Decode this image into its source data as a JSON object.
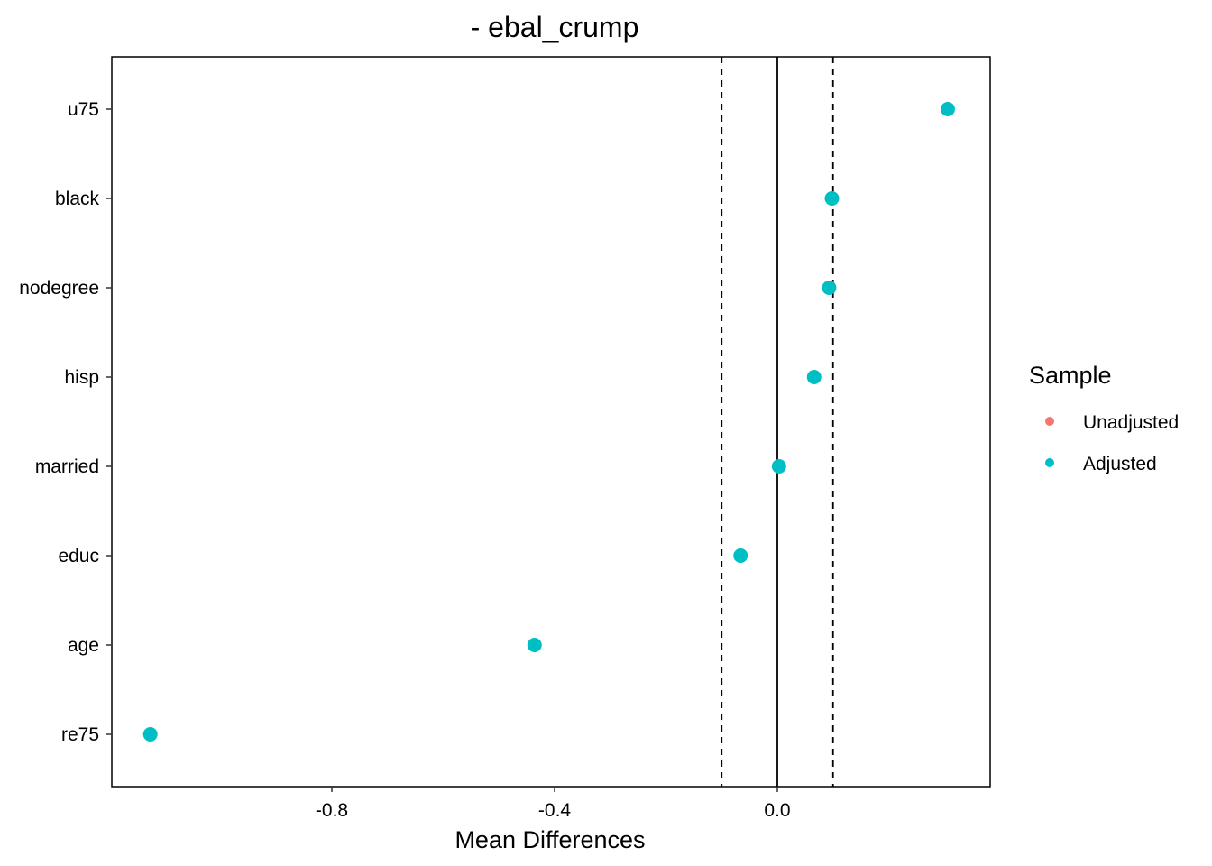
{
  "chart_data": {
    "type": "scatter",
    "title": "- ebal_crump",
    "xlabel": "Mean Differences",
    "ylabel": "",
    "xlim": [
      -1.2,
      0.38
    ],
    "x_ticks": [
      -0.8,
      -0.4,
      0.0
    ],
    "x_tick_labels": [
      "-0.8",
      "-0.4",
      "0.0"
    ],
    "categories": [
      "re75",
      "age",
      "educ",
      "married",
      "hisp",
      "nodegree",
      "black",
      "u75"
    ],
    "reference_lines": {
      "solid": 0.0,
      "dashed": [
        -0.1,
        0.1
      ]
    },
    "series": [
      {
        "name": "Unadjusted",
        "color": "#F8766D",
        "values": []
      },
      {
        "name": "Adjusted",
        "color": "#00BFC4",
        "values": [
          -1.126,
          -0.436,
          -0.066,
          0.003,
          0.066,
          0.093,
          0.098,
          0.306
        ]
      }
    ],
    "legend": {
      "title": "Sample",
      "position": "right",
      "entries": [
        {
          "label": "Unadjusted",
          "color": "#F8766D"
        },
        {
          "label": "Adjusted",
          "color": "#00BFC4"
        }
      ]
    },
    "grid": false
  }
}
